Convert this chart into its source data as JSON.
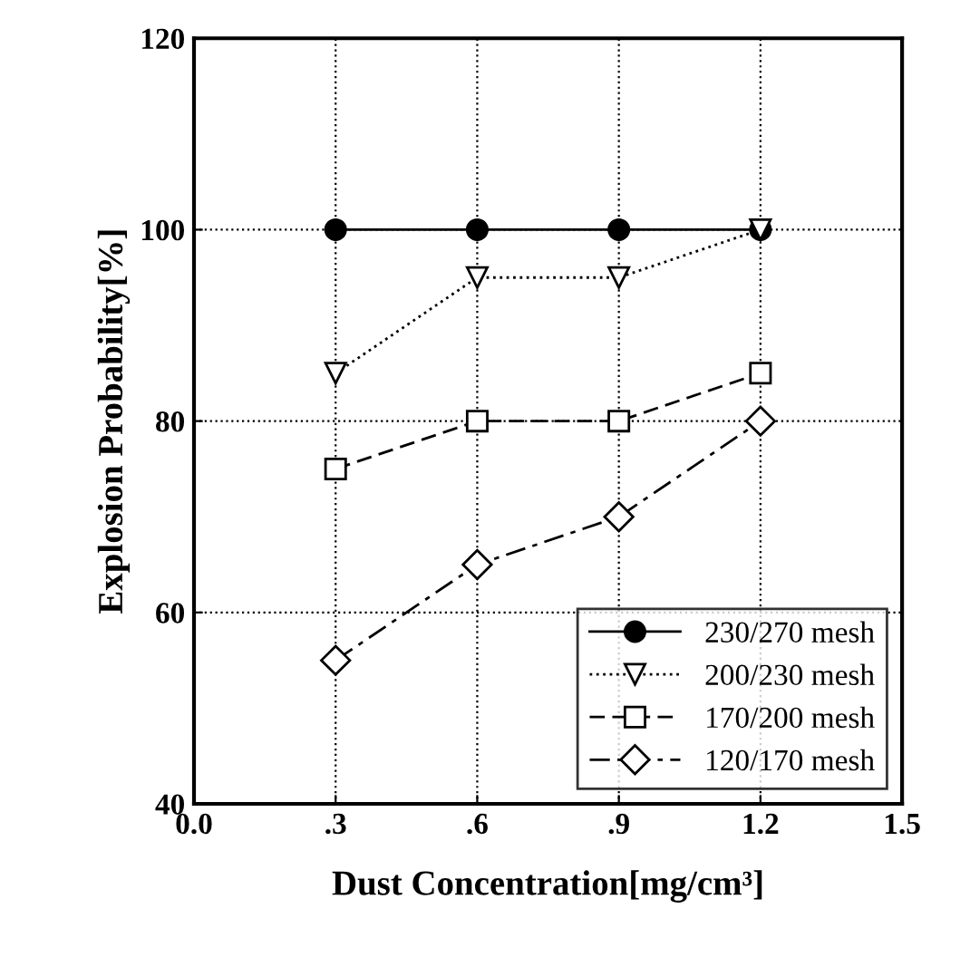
{
  "chart_data": {
    "type": "line",
    "xlabel": "Dust Concentration[mg/cm³]",
    "ylabel": "Explosion Probability[%]",
    "x": [
      0.3,
      0.6,
      0.9,
      1.2
    ],
    "series": [
      {
        "name": "230/270 mesh",
        "color": "#000000",
        "values": [
          100,
          100,
          100,
          100
        ],
        "marker": "circle",
        "line_style": "solid"
      },
      {
        "name": "200/230 mesh",
        "color": "#000000",
        "values": [
          85,
          95,
          95,
          100
        ],
        "marker": "triangle_down",
        "line_style": "dotted"
      },
      {
        "name": "170/200 mesh",
        "color": "#000000",
        "values": [
          75,
          80,
          80,
          85
        ],
        "marker": "square",
        "line_style": "dashed"
      },
      {
        "name": "120/170 mesh",
        "color": "#000000",
        "values": [
          55,
          65,
          70,
          80
        ],
        "marker": "diamond",
        "line_style": "dashdot"
      }
    ],
    "xlim": [
      0.0,
      1.5
    ],
    "xticks": [
      {
        "value": 0.0,
        "label": "0.0"
      },
      {
        "value": 0.3,
        "label": ".3"
      },
      {
        "value": 0.6,
        "label": ".6"
      },
      {
        "value": 0.9,
        "label": ".9"
      },
      {
        "value": 1.2,
        "label": "1.2"
      },
      {
        "value": 1.5,
        "label": "1.5"
      }
    ],
    "ylim": [
      40,
      120
    ],
    "yticks": [
      40,
      60,
      80,
      100,
      120
    ],
    "grid": true,
    "legend": "bottom right"
  }
}
